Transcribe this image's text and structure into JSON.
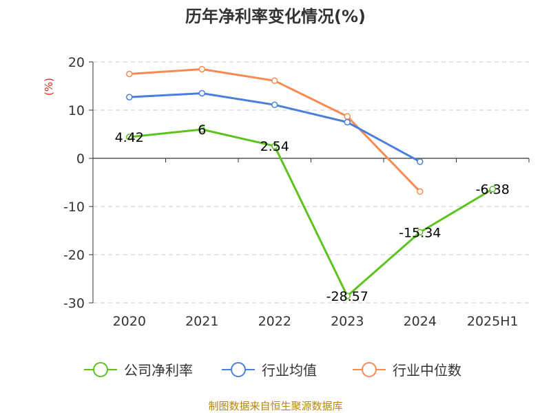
{
  "source_text": "制图数据来自恒生聚源数据库",
  "chart_data": {
    "type": "line",
    "title": "历年净利率变化情况(%)",
    "ylabel": "(%)",
    "xlabel": "",
    "categories": [
      "2020",
      "2021",
      "2022",
      "2023",
      "2024",
      "2025H1"
    ],
    "ylim": [
      -30,
      20
    ],
    "yticks": [
      20,
      10,
      0,
      -10,
      -20,
      -30
    ],
    "grid": true,
    "legend_position": "bottom",
    "series": [
      {
        "name": "公司净利率",
        "color": "#5bc21e",
        "values": [
          4.42,
          6,
          2.54,
          -28.57,
          -15.34,
          -6.38
        ],
        "labels": [
          "4.42",
          "6",
          "2.54",
          "-28.57",
          "-15.34",
          "-6.38"
        ]
      },
      {
        "name": "行业均值",
        "color": "#4a7fdc",
        "values": [
          12.7,
          13.5,
          11.1,
          7.5,
          -0.7,
          null
        ]
      },
      {
        "name": "行业中位数",
        "color": "#f68a52",
        "values": [
          17.5,
          18.5,
          16.1,
          8.7,
          -6.9,
          null
        ]
      }
    ]
  }
}
